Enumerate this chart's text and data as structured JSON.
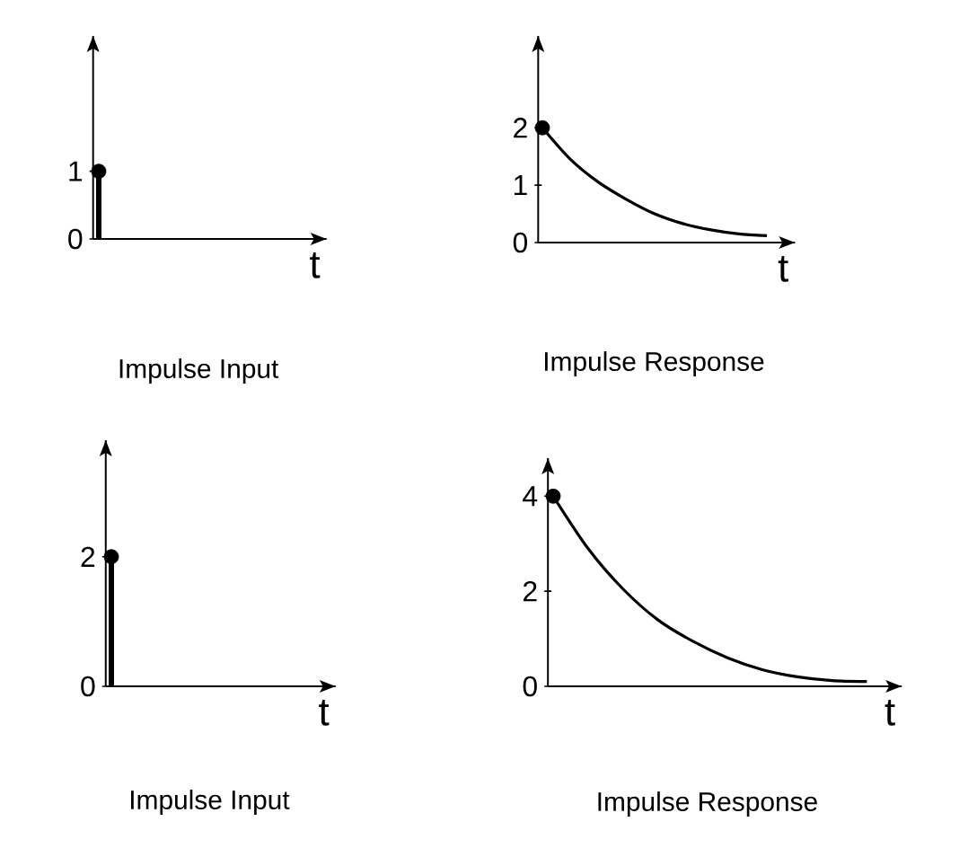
{
  "chart_data": [
    {
      "type": "lollipop",
      "title": "Impulse Input",
      "xlabel": "t",
      "categories": [
        null,
        null,
        null,
        null,
        null,
        null
      ],
      "values": [
        1,
        null,
        null,
        null,
        null,
        null
      ],
      "color": "#000000",
      "ylim": [
        0,
        3
      ],
      "yticks": [
        0,
        1
      ]
    },
    {
      "type": "line",
      "title": "Impulse Response",
      "xlabel": "t",
      "categories": [
        null,
        null,
        null,
        null,
        null,
        null,
        null,
        null,
        null
      ],
      "series": [
        {
          "type": "line",
          "color": "#000000",
          "values": [
            2,
            1.45,
            1.05,
            0.75,
            0.5,
            0.33,
            0.22,
            0.15,
            0.12
          ]
        },
        {
          "type": "scatter",
          "color": "#000000",
          "values": [
            2,
            null,
            null,
            null,
            null,
            null,
            null,
            null,
            null
          ]
        }
      ],
      "ylim": [
        0,
        3.6
      ],
      "yticks": [
        0,
        1,
        2
      ]
    },
    {
      "type": "lollipop",
      "title": "Impulse Input",
      "xlabel": "t",
      "categories": [
        null,
        null,
        null,
        null,
        null,
        null
      ],
      "values": [
        2,
        null,
        null,
        null,
        null,
        null
      ],
      "color": "#000000",
      "ylim": [
        0,
        3.8
      ],
      "yticks": [
        0,
        2
      ]
    },
    {
      "type": "line",
      "title": "Impulse Response",
      "xlabel": "t",
      "categories": [
        null,
        null,
        null,
        null,
        null,
        null,
        null,
        null,
        null,
        null
      ],
      "series": [
        {
          "type": "line",
          "color": "#000000",
          "values": [
            4,
            2.9,
            2.05,
            1.4,
            0.95,
            0.6,
            0.35,
            0.2,
            0.12,
            0.1
          ]
        },
        {
          "type": "scatter",
          "color": "#000000",
          "values": [
            4,
            null,
            null,
            null,
            null,
            null,
            null,
            null,
            null,
            null
          ]
        }
      ],
      "ylim": [
        0,
        4.8
      ],
      "yticks": [
        0,
        2,
        4
      ]
    }
  ]
}
